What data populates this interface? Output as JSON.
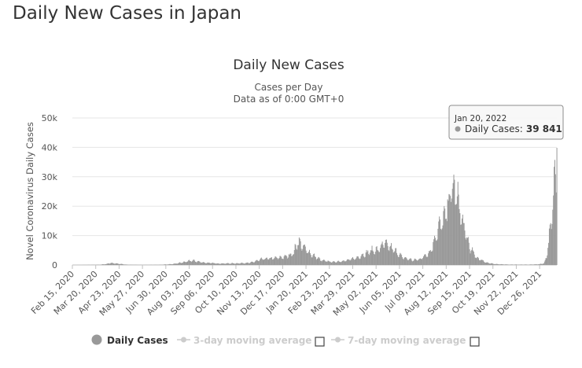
{
  "page": {
    "title": "Daily New Cases in Japan"
  },
  "chart_data": {
    "type": "bar",
    "title": "Daily New Cases",
    "subtitle_lines": [
      "Cases per Day",
      "Data as of 0:00 GMT+0"
    ],
    "ylabel": "Novel Coronavirus Daily Cases",
    "xlabel": "",
    "ylim": [
      0,
      50000
    ],
    "y_ticks": [
      {
        "value": 0,
        "label": "0"
      },
      {
        "value": 10000,
        "label": "10k"
      },
      {
        "value": 20000,
        "label": "20k"
      },
      {
        "value": 30000,
        "label": "30k"
      },
      {
        "value": 40000,
        "label": "40k"
      },
      {
        "value": 50000,
        "label": "50k"
      }
    ],
    "x_range": [
      "2020-02-15",
      "2022-01-20"
    ],
    "x_ticks": [
      "Feb 15, 2020",
      "Mar 20, 2020",
      "Apr 23, 2020",
      "May 27, 2020",
      "Jun 30, 2020",
      "Aug 03, 2020",
      "Sep 06, 2020",
      "Oct 10, 2020",
      "Nov 13, 2020",
      "Dec 17, 2020",
      "Jan 20, 2021",
      "Feb 23, 2021",
      "Mar 29, 2021",
      "May 02, 2021",
      "Jun 05, 2021",
      "Jul 09, 2021",
      "Aug 12, 2021",
      "Sep 15, 2021",
      "Oct 19, 2021",
      "Nov 22, 2021",
      "Dec 26, 2021"
    ],
    "grid": true,
    "bar_color": "#999999",
    "series_shape": [
      [
        "2020-02-15",
        0
      ],
      [
        "2020-03-25",
        80
      ],
      [
        "2020-04-05",
        350
      ],
      [
        "2020-04-11",
        700
      ],
      [
        "2020-04-18",
        500
      ],
      [
        "2020-05-05",
        100
      ],
      [
        "2020-05-25",
        30
      ],
      [
        "2020-06-20",
        60
      ],
      [
        "2020-07-10",
        300
      ],
      [
        "2020-07-25",
        900
      ],
      [
        "2020-08-07",
        1500
      ],
      [
        "2020-08-25",
        800
      ],
      [
        "2020-09-15",
        500
      ],
      [
        "2020-10-10",
        550
      ],
      [
        "2020-10-31",
        750
      ],
      [
        "2020-11-18",
        2000
      ],
      [
        "2020-12-05",
        2300
      ],
      [
        "2020-12-20",
        2700
      ],
      [
        "2021-01-02",
        4000
      ],
      [
        "2021-01-08",
        7900
      ],
      [
        "2021-01-16",
        6000
      ],
      [
        "2021-01-28",
        3500
      ],
      [
        "2021-02-12",
        1500
      ],
      [
        "2021-03-01",
        1000
      ],
      [
        "2021-03-20",
        1500
      ],
      [
        "2021-04-05",
        2500
      ],
      [
        "2021-04-25",
        4800
      ],
      [
        "2021-05-05",
        5000
      ],
      [
        "2021-05-13",
        7200
      ],
      [
        "2021-05-25",
        5500
      ],
      [
        "2021-06-10",
        2500
      ],
      [
        "2021-06-25",
        1600
      ],
      [
        "2021-07-05",
        2000
      ],
      [
        "2021-07-20",
        4500
      ],
      [
        "2021-07-31",
        12000
      ],
      [
        "2021-08-10",
        16000
      ],
      [
        "2021-08-20",
        25900
      ],
      [
        "2021-08-27",
        24000
      ],
      [
        "2021-09-05",
        14000
      ],
      [
        "2021-09-15",
        6000
      ],
      [
        "2021-09-25",
        2500
      ],
      [
        "2021-10-10",
        800
      ],
      [
        "2021-10-20",
        350
      ],
      [
        "2021-11-10",
        150
      ],
      [
        "2021-12-10",
        130
      ],
      [
        "2021-12-25",
        250
      ],
      [
        "2022-01-01",
        550
      ],
      [
        "2022-01-05",
        2600
      ],
      [
        "2022-01-08",
        8500
      ],
      [
        "2022-01-12",
        13000
      ],
      [
        "2022-01-15",
        25000
      ],
      [
        "2022-01-18",
        32000
      ],
      [
        "2022-01-19",
        30000
      ],
      [
        "2022-01-20",
        39841
      ]
    ],
    "tooltip": {
      "date": "Jan 20, 2022",
      "label": "Daily Cases:",
      "value": "39 841"
    },
    "legend": [
      {
        "name": "Daily Cases",
        "active": true,
        "checkbox": false
      },
      {
        "name": "3-day moving average",
        "active": false,
        "checkbox": true
      },
      {
        "name": "7-day moving average",
        "active": false,
        "checkbox": true
      }
    ]
  }
}
